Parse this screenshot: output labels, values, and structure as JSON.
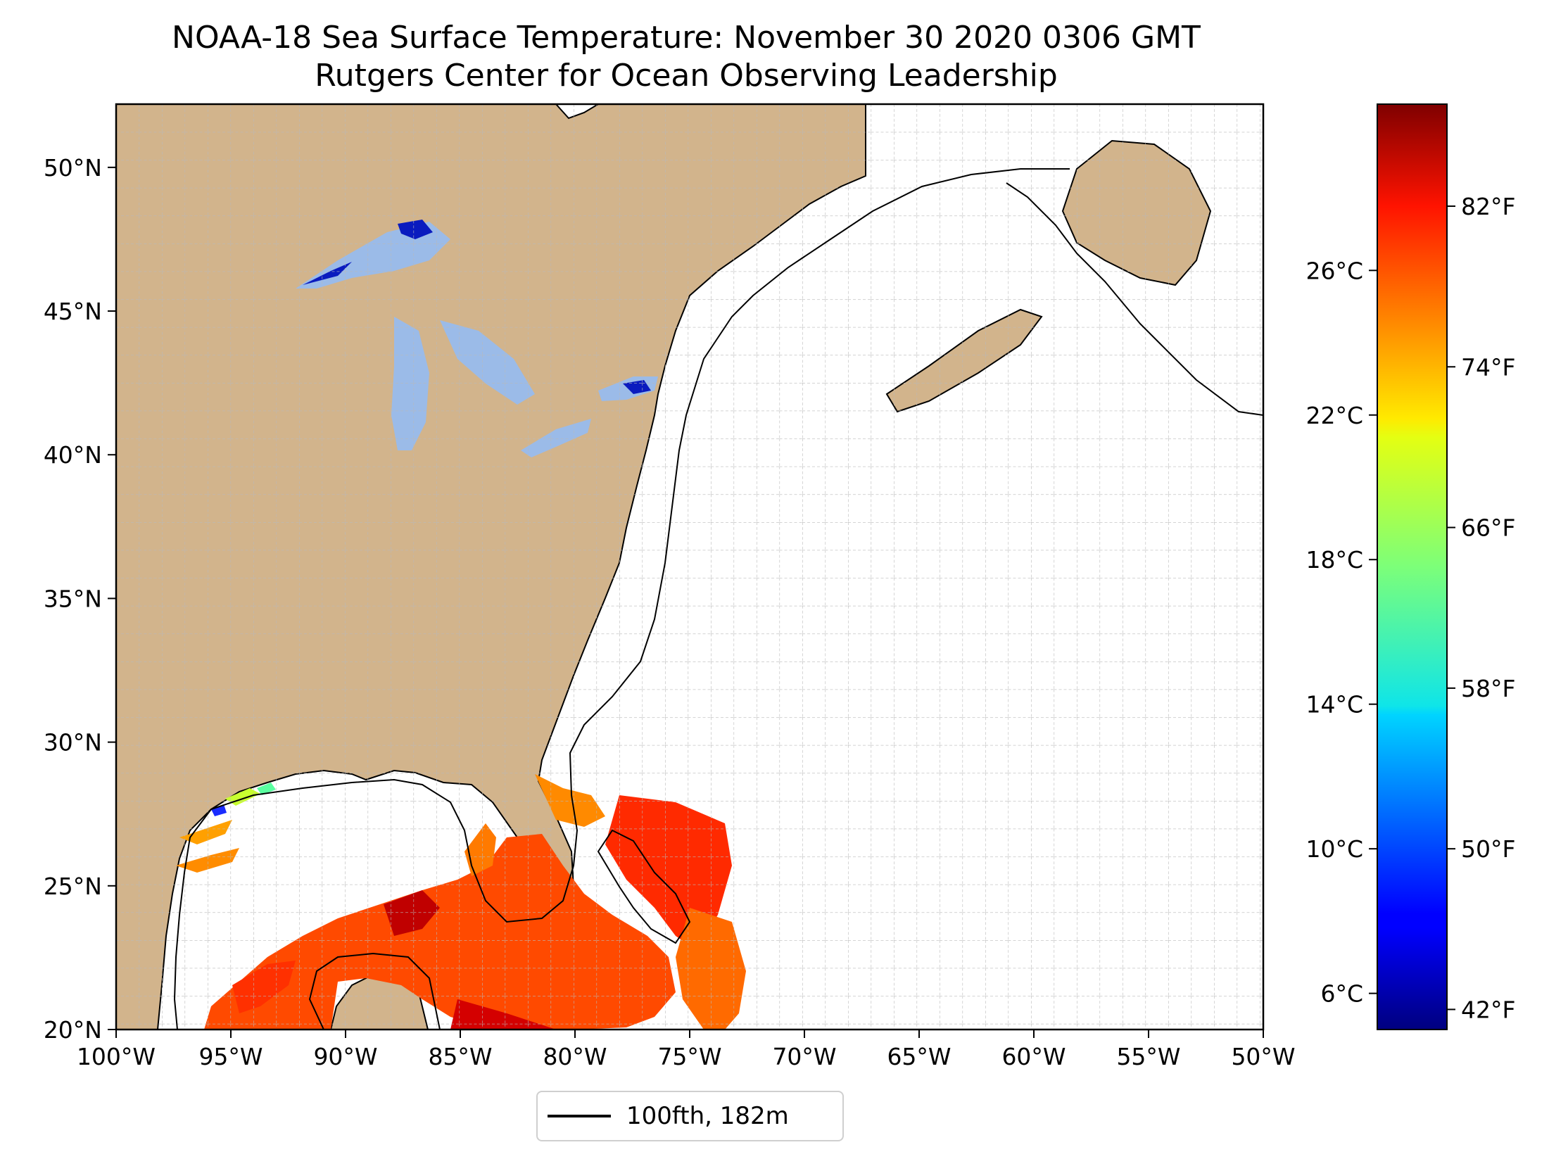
{
  "title": {
    "line1": "NOAA-18 Sea Surface Temperature: November 30 2020 0306 GMT",
    "line2": "Rutgers Center for Ocean Observing Leadership"
  },
  "map": {
    "lon_range": [
      -100,
      -50
    ],
    "lat_range": [
      20,
      52.2
    ],
    "lon_ticks": [
      {
        "value": -100,
        "label": "100°W"
      },
      {
        "value": -95,
        "label": "95°W"
      },
      {
        "value": -90,
        "label": "90°W"
      },
      {
        "value": -85,
        "label": "85°W"
      },
      {
        "value": -80,
        "label": "80°W"
      },
      {
        "value": -75,
        "label": "75°W"
      },
      {
        "value": -70,
        "label": "70°W"
      },
      {
        "value": -65,
        "label": "65°W"
      },
      {
        "value": -60,
        "label": "60°W"
      },
      {
        "value": -55,
        "label": "55°W"
      },
      {
        "value": -50,
        "label": "50°W"
      }
    ],
    "lat_ticks": [
      {
        "value": 20,
        "label": "20°N"
      },
      {
        "value": 25,
        "label": "25°N"
      },
      {
        "value": 30,
        "label": "30°N"
      },
      {
        "value": 35,
        "label": "35°N"
      },
      {
        "value": 40,
        "label": "40°N"
      },
      {
        "value": 45,
        "label": "45°N"
      },
      {
        "value": 50,
        "label": "50°N"
      }
    ],
    "grid": true,
    "land_color": "#d2b48c",
    "lake_color": "#9bbbe8",
    "ocean_color": "#ffffff"
  },
  "colorbar": {
    "colormap": "jet",
    "celsius_range": [
      5,
      30.6
    ],
    "celsius_ticks": [
      {
        "value": 6,
        "label": "6°C"
      },
      {
        "value": 10,
        "label": "10°C"
      },
      {
        "value": 14,
        "label": "14°C"
      },
      {
        "value": 18,
        "label": "18°C"
      },
      {
        "value": 22,
        "label": "22°C"
      },
      {
        "value": 26,
        "label": "26°C"
      }
    ],
    "fahrenheit_ticks": [
      {
        "value": 42,
        "label": "42°F"
      },
      {
        "value": 50,
        "label": "50°F"
      },
      {
        "value": 58,
        "label": "58°F"
      },
      {
        "value": 66,
        "label": "66°F"
      },
      {
        "value": 74,
        "label": "74°F"
      },
      {
        "value": 82,
        "label": "82°F"
      }
    ]
  },
  "legend": {
    "label": "100fth, 182m",
    "color": "#000000"
  }
}
